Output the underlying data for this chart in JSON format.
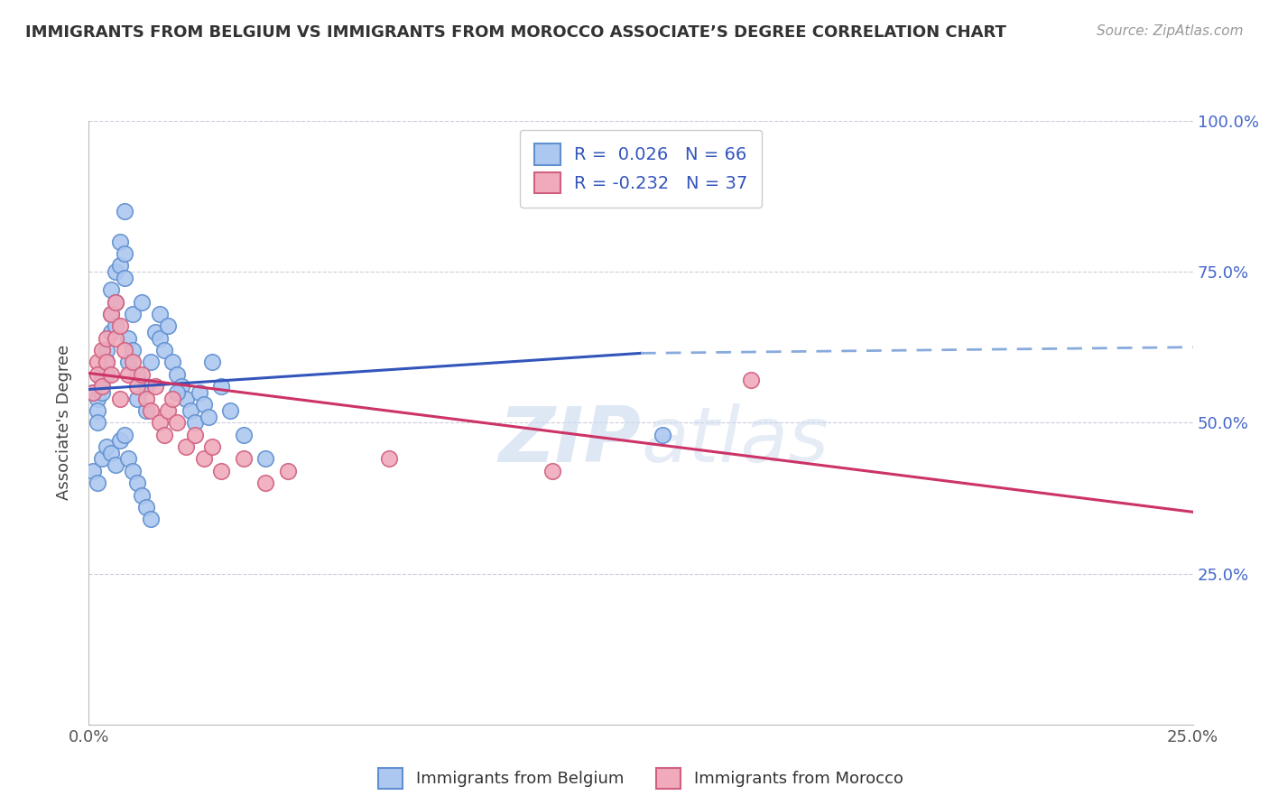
{
  "title": "IMMIGRANTS FROM BELGIUM VS IMMIGRANTS FROM MOROCCO ASSOCIATE’S DEGREE CORRELATION CHART",
  "source": "Source: ZipAtlas.com",
  "ylabel": "Associate's Degree",
  "xlim": [
    0.0,
    0.25
  ],
  "ylim": [
    0.0,
    1.0
  ],
  "xtick_vals": [
    0.0,
    0.25
  ],
  "xtick_labels": [
    "0.0%",
    "25.0%"
  ],
  "ytick_vals": [
    0.25,
    0.5,
    0.75,
    1.0
  ],
  "ytick_labels": [
    "25.0%",
    "50.0%",
    "75.0%",
    "100.0%"
  ],
  "belgium_color": "#adc8f0",
  "morocco_color": "#f0aabb",
  "belgium_edge": "#6090d0",
  "morocco_edge": "#d06080",
  "trend_belgium_color": "#3355bb",
  "trend_morocco_color": "#cc3366",
  "trend_belgium_dash_color": "#88aadd",
  "R_belgium": 0.026,
  "N_belgium": 66,
  "R_morocco": -0.232,
  "N_morocco": 37,
  "legend_label_belgium": "Immigrants from Belgium",
  "legend_label_morocco": "Immigrants from Morocco",
  "background_color": "#ffffff",
  "grid_color": "#ccccdd",
  "watermark_color": "#d0ddf0",
  "trend_b_x0": 0.0,
  "trend_b_y0": 0.555,
  "trend_b_x1": 0.125,
  "trend_b_y1": 0.615,
  "trend_b_dash_x0": 0.125,
  "trend_b_dash_y0": 0.615,
  "trend_b_dash_x1": 0.25,
  "trend_b_dash_y1": 0.625,
  "trend_m_x0": 0.0,
  "trend_m_y0": 0.582,
  "trend_m_x1": 0.25,
  "trend_m_y1": 0.352,
  "belgium_x": [
    0.001,
    0.002,
    0.002,
    0.002,
    0.003,
    0.003,
    0.003,
    0.004,
    0.004,
    0.004,
    0.005,
    0.005,
    0.005,
    0.006,
    0.006,
    0.006,
    0.007,
    0.007,
    0.008,
    0.008,
    0.008,
    0.009,
    0.009,
    0.01,
    0.01,
    0.011,
    0.011,
    0.012,
    0.013,
    0.013,
    0.014,
    0.015,
    0.016,
    0.016,
    0.017,
    0.018,
    0.019,
    0.02,
    0.021,
    0.022,
    0.023,
    0.024,
    0.025,
    0.026,
    0.027,
    0.028,
    0.03,
    0.032,
    0.035,
    0.04,
    0.001,
    0.002,
    0.003,
    0.004,
    0.005,
    0.006,
    0.007,
    0.008,
    0.009,
    0.01,
    0.011,
    0.012,
    0.013,
    0.014,
    0.13,
    0.02
  ],
  "belgium_y": [
    0.55,
    0.54,
    0.52,
    0.5,
    0.58,
    0.57,
    0.55,
    0.62,
    0.6,
    0.58,
    0.72,
    0.68,
    0.65,
    0.75,
    0.7,
    0.66,
    0.8,
    0.76,
    0.85,
    0.78,
    0.74,
    0.64,
    0.6,
    0.68,
    0.62,
    0.58,
    0.54,
    0.7,
    0.56,
    0.52,
    0.6,
    0.65,
    0.68,
    0.64,
    0.62,
    0.66,
    0.6,
    0.58,
    0.56,
    0.54,
    0.52,
    0.5,
    0.55,
    0.53,
    0.51,
    0.6,
    0.56,
    0.52,
    0.48,
    0.44,
    0.42,
    0.4,
    0.44,
    0.46,
    0.45,
    0.43,
    0.47,
    0.48,
    0.44,
    0.42,
    0.4,
    0.38,
    0.36,
    0.34,
    0.48,
    0.55
  ],
  "morocco_x": [
    0.001,
    0.002,
    0.002,
    0.003,
    0.003,
    0.004,
    0.004,
    0.005,
    0.005,
    0.006,
    0.006,
    0.007,
    0.007,
    0.008,
    0.009,
    0.01,
    0.011,
    0.012,
    0.013,
    0.014,
    0.015,
    0.016,
    0.017,
    0.018,
    0.019,
    0.02,
    0.022,
    0.024,
    0.026,
    0.028,
    0.03,
    0.035,
    0.04,
    0.15,
    0.105,
    0.068,
    0.045
  ],
  "morocco_y": [
    0.55,
    0.6,
    0.58,
    0.62,
    0.56,
    0.64,
    0.6,
    0.68,
    0.58,
    0.7,
    0.64,
    0.66,
    0.54,
    0.62,
    0.58,
    0.6,
    0.56,
    0.58,
    0.54,
    0.52,
    0.56,
    0.5,
    0.48,
    0.52,
    0.54,
    0.5,
    0.46,
    0.48,
    0.44,
    0.46,
    0.42,
    0.44,
    0.4,
    0.57,
    0.42,
    0.44,
    0.42
  ]
}
